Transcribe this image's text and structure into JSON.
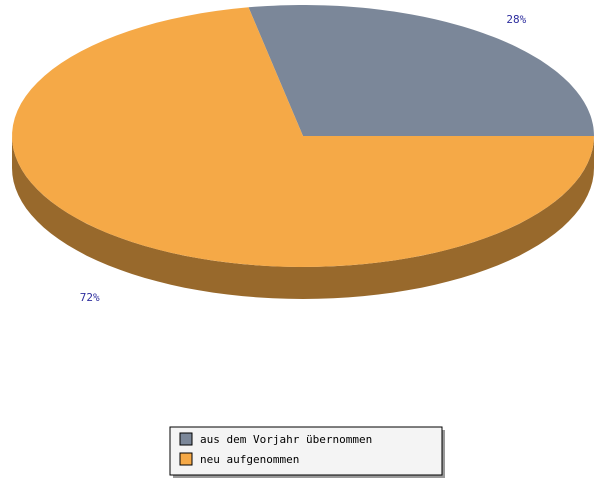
{
  "chart_data": {
    "type": "pie3d",
    "categories": [
      "aus dem Vorjahr übernommen",
      "neu aufgenommen"
    ],
    "values": [
      28,
      72
    ],
    "value_labels": [
      "28%",
      "72%"
    ],
    "colors": [
      "#7b8799",
      "#f5a947"
    ],
    "legend": "bottom"
  }
}
